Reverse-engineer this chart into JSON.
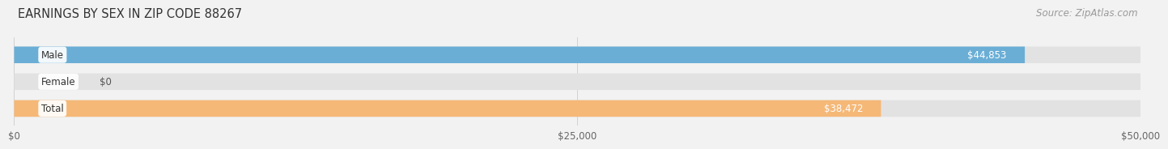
{
  "title": "EARNINGS BY SEX IN ZIP CODE 88267",
  "source": "Source: ZipAtlas.com",
  "categories": [
    "Male",
    "Female",
    "Total"
  ],
  "values": [
    44853,
    0,
    38472
  ],
  "bar_colors": [
    "#6aaed6",
    "#f4a0b0",
    "#f5b877"
  ],
  "bar_labels": [
    "$44,853",
    "$0",
    "$38,472"
  ],
  "xlim": [
    0,
    50000
  ],
  "xticks": [
    0,
    25000,
    50000
  ],
  "xtick_labels": [
    "$0",
    "$25,000",
    "$50,000"
  ],
  "background_color": "#f2f2f2",
  "bar_bg_color": "#e2e2e2",
  "title_fontsize": 10.5,
  "source_fontsize": 8.5,
  "label_fontsize": 8.5,
  "tick_fontsize": 8.5,
  "cat_label_fontsize": 8.5
}
